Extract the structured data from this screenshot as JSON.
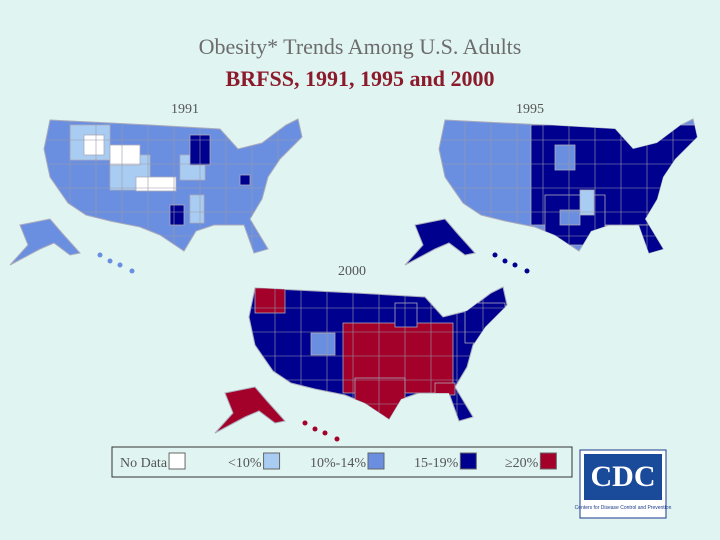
{
  "header": {
    "title": "Obesity* Trends Among U.S. Adults",
    "subtitle": "BRFSS, 1991, 1995 and 2000"
  },
  "maps": [
    {
      "label": "1991"
    },
    {
      "label": "1995"
    },
    {
      "label": "2000"
    }
  ],
  "legend": {
    "items": [
      {
        "label": "No Data",
        "color": "#ffffff"
      },
      {
        "label": "<10%",
        "color": "#a9cdf2"
      },
      {
        "label": "10%-14%",
        "color": "#6a8fe0"
      },
      {
        "label": "15-19%",
        "color": "#00008f"
      },
      {
        "label": "≥20%",
        "color": "#a3002a"
      }
    ]
  },
  "logo": {
    "name": "CDC",
    "tagline": "Centers for Disease Control and Prevention"
  }
}
